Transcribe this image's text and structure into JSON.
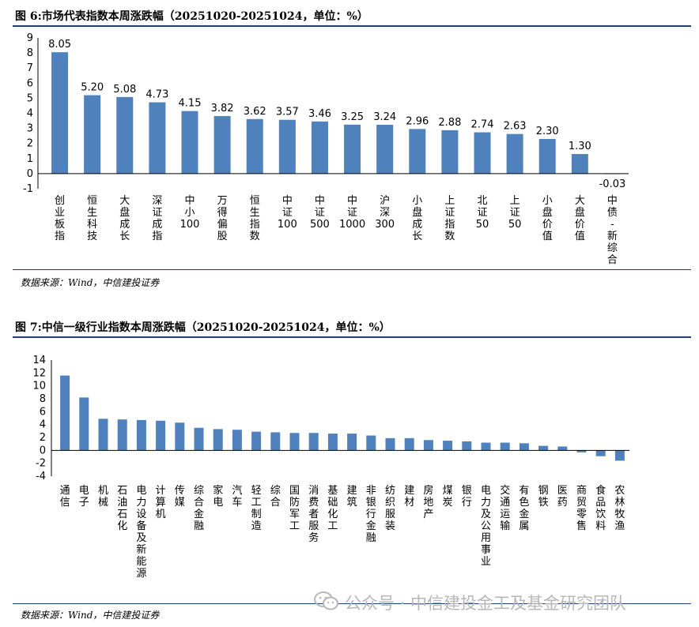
{
  "chart_data": [
    {
      "type": "bar",
      "title": "图 6:市场代表指数本周涨跌幅（20251020-20251024，单位：%）",
      "categories": [
        "创业板指",
        "恒生科技",
        "大盘成长",
        "深证成指",
        "中小100",
        "万得偏股",
        "恒生指数",
        "中证100",
        "中证500",
        "中证1000",
        "沪深300",
        "小盘成长",
        "上证指数",
        "北证50",
        "上证50",
        "小盘价值",
        "大盘价值",
        "中债-新综合"
      ],
      "values": [
        8.05,
        5.2,
        5.08,
        4.73,
        4.15,
        3.82,
        3.62,
        3.57,
        3.46,
        3.25,
        3.24,
        2.96,
        2.88,
        2.74,
        2.63,
        2.3,
        1.3,
        -0.03
      ],
      "value_labels": [
        "8.05",
        "5.20",
        "5.08",
        "4.73",
        "4.15",
        "3.82",
        "3.62",
        "3.57",
        "3.46",
        "3.25",
        "3.24",
        "2.96",
        "2.88",
        "2.74",
        "2.63",
        "2.30",
        "1.30",
        "-0.03"
      ],
      "yticks": [
        "9",
        "8",
        "7",
        "6",
        "5",
        "4",
        "3",
        "2",
        "1",
        "0",
        "-1"
      ],
      "ylim": [
        -1,
        9
      ],
      "xlabel": "",
      "ylabel": "",
      "grid": false,
      "legend": "none",
      "source": "数据来源：Wind，中信建投证券"
    },
    {
      "type": "bar",
      "title": "图 7:中信一级行业指数本周涨跌幅（20251020-20251024，单位：%）",
      "categories": [
        "通信",
        "电子",
        "机械",
        "石油石化",
        "电力设备及新能源",
        "计算机",
        "传媒",
        "综合金融",
        "家电",
        "汽车",
        "轻工制造",
        "综合",
        "国防军工",
        "消费者服务",
        "基础化工",
        "建筑",
        "非银行金融",
        "纺织服装",
        "建材",
        "房地产",
        "煤炭",
        "银行",
        "电力及公用事业",
        "交通运输",
        "有色金属",
        "钢铁",
        "医药",
        "商贸零售",
        "食品饮料",
        "农林牧渔"
      ],
      "values": [
        11.6,
        8.2,
        4.9,
        4.8,
        4.7,
        4.6,
        4.3,
        3.5,
        3.3,
        3.2,
        2.9,
        2.8,
        2.7,
        2.7,
        2.6,
        2.6,
        2.3,
        1.9,
        1.9,
        1.6,
        1.5,
        1.4,
        1.2,
        1.2,
        1.1,
        0.7,
        0.6,
        -0.3,
        -0.9,
        -1.6
      ],
      "yticks": [
        "14",
        "12",
        "10",
        "8",
        "6",
        "4",
        "2",
        "0",
        "-2",
        "-4"
      ],
      "ylim": [
        -4,
        14
      ],
      "xlabel": "",
      "ylabel": "",
      "grid": false,
      "legend": "none",
      "source": "数据来源：Wind，中信建投证券"
    }
  ],
  "colors": {
    "bar": "#4f81bd",
    "bar_negative": "#d7dee8",
    "rule": "#1f3f73"
  },
  "watermark": {
    "icon": "wechat-icon",
    "text": "公众号 · 中信建投金工及基金研究团队"
  }
}
